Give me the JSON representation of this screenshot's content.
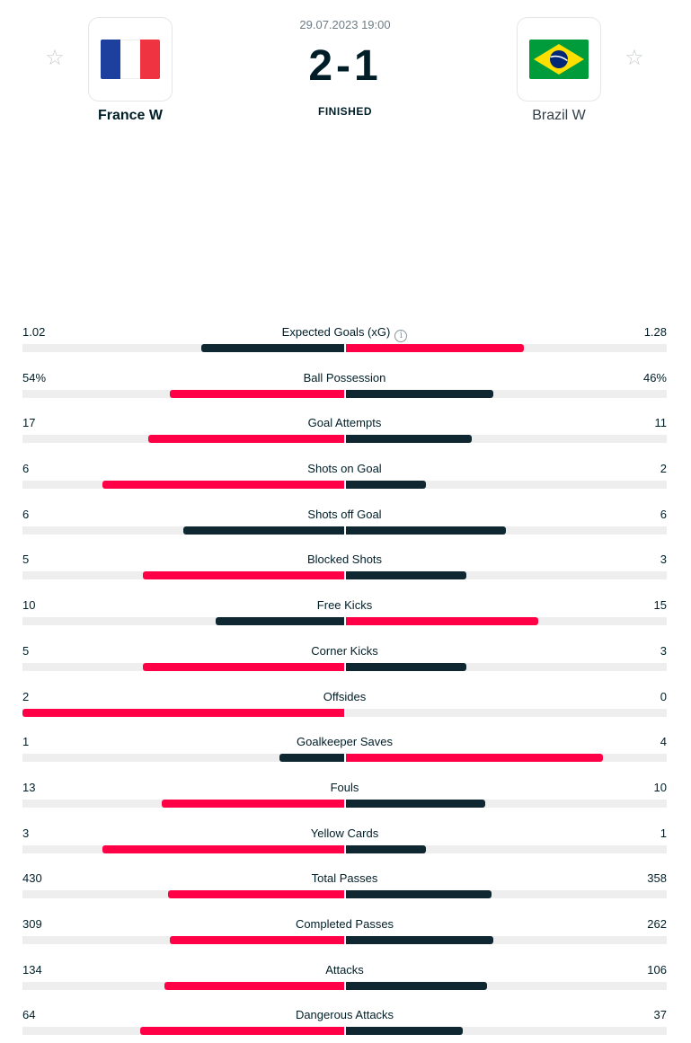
{
  "match": {
    "datetime": "29.07.2023 19:00",
    "score": "2-1",
    "status": "FINISHED",
    "home": {
      "name": "France W",
      "flag": "flag-france-icon"
    },
    "away": {
      "name": "Brazil W",
      "flag": "flag-brazil-icon"
    }
  },
  "colors": {
    "accent": "#ff0046",
    "dark": "#0f2730",
    "track": "#eeeeee"
  },
  "stats": [
    {
      "category": "Expected Goals (xG)",
      "home": "1.02",
      "away": "1.28",
      "home_value": 1.02,
      "away_value": 1.28,
      "info": true
    },
    {
      "category": "Ball Possession",
      "home": "54%",
      "away": "46%",
      "home_value": 54,
      "away_value": 46
    },
    {
      "category": "Goal Attempts",
      "home": "17",
      "away": "11",
      "home_value": 17,
      "away_value": 11
    },
    {
      "category": "Shots on Goal",
      "home": "6",
      "away": "2",
      "home_value": 6,
      "away_value": 2
    },
    {
      "category": "Shots off Goal",
      "home": "6",
      "away": "6",
      "home_value": 6,
      "away_value": 6
    },
    {
      "category": "Blocked Shots",
      "home": "5",
      "away": "3",
      "home_value": 5,
      "away_value": 3
    },
    {
      "category": "Free Kicks",
      "home": "10",
      "away": "15",
      "home_value": 10,
      "away_value": 15
    },
    {
      "category": "Corner Kicks",
      "home": "5",
      "away": "3",
      "home_value": 5,
      "away_value": 3
    },
    {
      "category": "Offsides",
      "home": "2",
      "away": "0",
      "home_value": 2,
      "away_value": 0
    },
    {
      "category": "Goalkeeper Saves",
      "home": "1",
      "away": "4",
      "home_value": 1,
      "away_value": 4
    },
    {
      "category": "Fouls",
      "home": "13",
      "away": "10",
      "home_value": 13,
      "away_value": 10
    },
    {
      "category": "Yellow Cards",
      "home": "3",
      "away": "1",
      "home_value": 3,
      "away_value": 1
    },
    {
      "category": "Total Passes",
      "home": "430",
      "away": "358",
      "home_value": 430,
      "away_value": 358
    },
    {
      "category": "Completed Passes",
      "home": "309",
      "away": "262",
      "home_value": 309,
      "away_value": 262
    },
    {
      "category": "Attacks",
      "home": "134",
      "away": "106",
      "home_value": 134,
      "away_value": 106
    },
    {
      "category": "Dangerous Attacks",
      "home": "64",
      "away": "37",
      "home_value": 64,
      "away_value": 37
    }
  ]
}
